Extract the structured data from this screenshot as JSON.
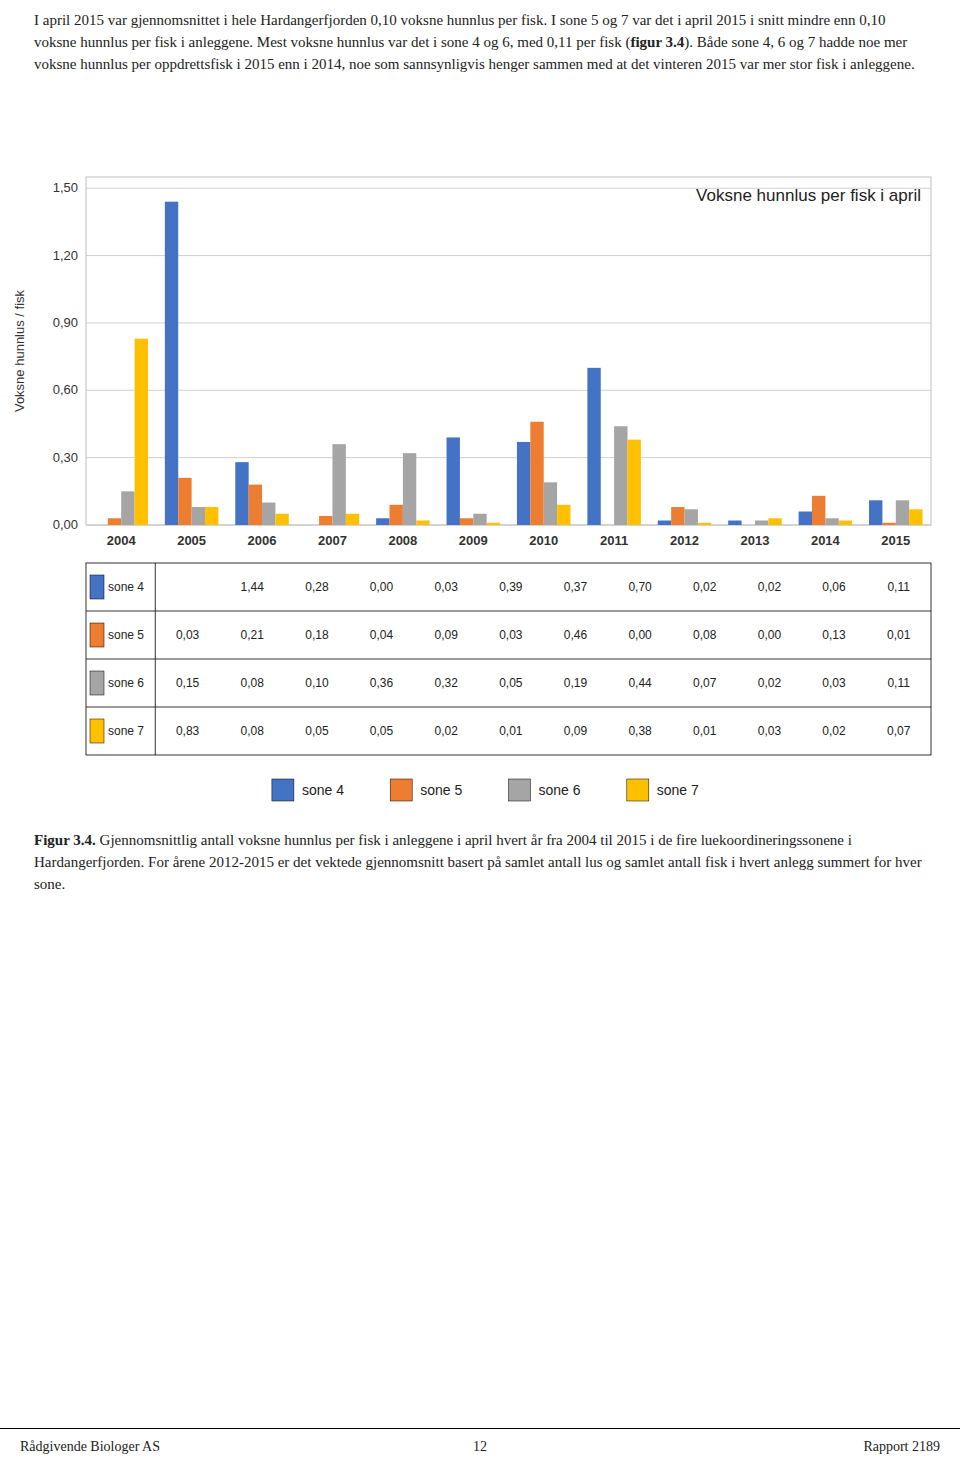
{
  "chart_data": {
    "type": "bar",
    "title": "Voksne hunnlus per fisk i april",
    "ylabel": "Voksne hunnlus / fisk",
    "categories": [
      "2004",
      "2005",
      "2006",
      "2007",
      "2008",
      "2009",
      "2010",
      "2011",
      "2012",
      "2013",
      "2014",
      "2015"
    ],
    "series": [
      {
        "name": "sone 4",
        "color": "#4472C4",
        "values": [
          null,
          1.44,
          0.28,
          0.0,
          0.03,
          0.39,
          0.37,
          0.7,
          0.02,
          0.02,
          0.06,
          0.11
        ],
        "value_labels": [
          null,
          "1,44",
          "0,28",
          "0,00",
          "0,03",
          "0,39",
          "0,37",
          "0,70",
          "0,02",
          "0,02",
          "0,06",
          "0,11"
        ]
      },
      {
        "name": "sone 5",
        "color": "#ED7D31",
        "values": [
          0.03,
          0.21,
          0.18,
          0.04,
          0.09,
          0.03,
          0.46,
          0.0,
          0.08,
          0.0,
          0.13,
          0.01
        ],
        "value_labels": [
          "0,03",
          "0,21",
          "0,18",
          "0,04",
          "0,09",
          "0,03",
          "0,46",
          "0,00",
          "0,08",
          "0,00",
          "0,13",
          "0,01"
        ]
      },
      {
        "name": "sone 6",
        "color": "#A5A5A5",
        "values": [
          0.15,
          0.08,
          0.1,
          0.36,
          0.32,
          0.05,
          0.19,
          0.44,
          0.07,
          0.02,
          0.03,
          0.11
        ],
        "value_labels": [
          "0,15",
          "0,08",
          "0,10",
          "0,36",
          "0,32",
          "0,05",
          "0,19",
          "0,44",
          "0,07",
          "0,02",
          "0,03",
          "0,11"
        ]
      },
      {
        "name": "sone 7",
        "color": "#FFC000",
        "values": [
          0.83,
          0.08,
          0.05,
          0.05,
          0.02,
          0.01,
          0.09,
          0.38,
          0.01,
          0.03,
          0.02,
          0.07
        ],
        "value_labels": [
          "0,83",
          "0,08",
          "0,05",
          "0,05",
          "0,02",
          "0,01",
          "0,09",
          "0,38",
          "0,01",
          "0,03",
          "0,02",
          "0,07"
        ]
      }
    ],
    "ylim": [
      0,
      1.55
    ],
    "yticks": [
      {
        "value": 0.0,
        "label": "0,00"
      },
      {
        "value": 0.3,
        "label": "0,30"
      },
      {
        "value": 0.6,
        "label": "0,60"
      },
      {
        "value": 0.9,
        "label": "0,90"
      },
      {
        "value": 1.2,
        "label": "1,20"
      },
      {
        "value": 1.5,
        "label": "1,50"
      }
    ],
    "grid": true,
    "legend": "bottom"
  },
  "header": {
    "plain": "I april 2015 var gjennomsnittet i hele Hardangerfjorden 0,10 voksne hunnlus per fisk. I sone 5 og 7 var det i april 2015 i snitt mindre enn 0,10 voksne hunnlus per fisk i anleggene. Mest voksne hunnlus var det i sone 4 og 6, med 0,11 per fisk (",
    "bold": "figur 3.4",
    "rest": "). Både sone 4, 6 og 7 hadde noe mer voksne hunnlus per oppdrettsfisk i 2015 enn i 2014, noe som sannsynligvis henger sammen med at det vinteren 2015 var mer stor fisk i anleggene."
  },
  "caption": {
    "bold": "Figur 3.4.",
    "rest": " Gjennomsnittlig antall voksne hunnlus per fisk i anleggene i april hvert år fra 2004 til 2015 i de fire luekoordineringssonene i Hardangerfjorden. For årene 2012-2015 er det vektede gjennomsnitt basert på samlet antall lus og samlet antall fisk i hvert anlegg summert for hver sone."
  },
  "footer": {
    "left": "Rådgivende Biologer AS",
    "center": "12",
    "right": "Rapport 2189"
  }
}
